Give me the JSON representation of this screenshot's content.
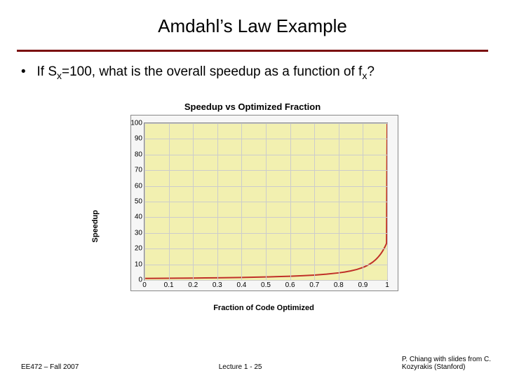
{
  "title": "Amdahl’s Law Example",
  "bullet": {
    "prefix": "If S",
    "sub1": "x",
    "mid": "=100, what is the overall speedup as a function of f",
    "sub2": "x",
    "suffix": "?"
  },
  "chart": {
    "type": "line",
    "title": "Speedup vs Optimized Fraction",
    "xlabel": "Fraction of Code Optimized",
    "ylabel": "Speedup",
    "xlim": [
      0,
      1
    ],
    "ylim": [
      0,
      100
    ],
    "xticks": [
      0,
      0.1,
      0.2,
      0.3,
      0.4,
      0.5,
      0.6,
      0.7,
      0.8,
      0.9,
      1
    ],
    "yticks": [
      0,
      10,
      20,
      30,
      40,
      50,
      60,
      70,
      80,
      90,
      100
    ],
    "x": [
      0,
      0.05,
      0.1,
      0.15,
      0.2,
      0.25,
      0.3,
      0.35,
      0.4,
      0.45,
      0.5,
      0.55,
      0.6,
      0.65,
      0.7,
      0.75,
      0.8,
      0.825,
      0.85,
      0.875,
      0.9,
      0.91,
      0.92,
      0.93,
      0.94,
      0.95,
      0.955,
      0.96,
      0.965,
      0.97,
      0.975,
      0.98,
      0.9825,
      0.985,
      0.9875,
      0.99,
      0.9925,
      0.995,
      0.9975,
      1.0
    ],
    "y": [
      1.0,
      1.052,
      1.109,
      1.173,
      1.244,
      1.325,
      1.416,
      1.521,
      1.642,
      1.784,
      1.953,
      2.157,
      2.41,
      2.73,
      3.15,
      3.721,
      4.545,
      5.096,
      5.797,
      6.723,
      8.013,
      8.673,
      9.434,
      10.32,
      11.364,
      12.61,
      13.333,
      14.124,
      14.993,
      15.949,
      17.004,
      18.172,
      18.805,
      19.473,
      20.178,
      20.921,
      21.705,
      22.535,
      23.412,
      100.0
    ],
    "line_color": "#c03028",
    "line_width": 2,
    "plot_bg": "#f2f0b0",
    "panel_bg": "#f6f6f6",
    "grid_color": "#cccccc",
    "border_color": "#888888",
    "title_fontsize": 13,
    "label_fontsize": 11,
    "tick_fontsize": 10
  },
  "footer": {
    "left": "EE472 – Fall 2007",
    "center": "Lecture 1 - 25",
    "right1": "P. Chiang with slides from C.",
    "right2": "Kozyrakis (Stanford)"
  },
  "colors": {
    "rule": "#7b0d0d",
    "text": "#000000",
    "bg": "#ffffff"
  }
}
